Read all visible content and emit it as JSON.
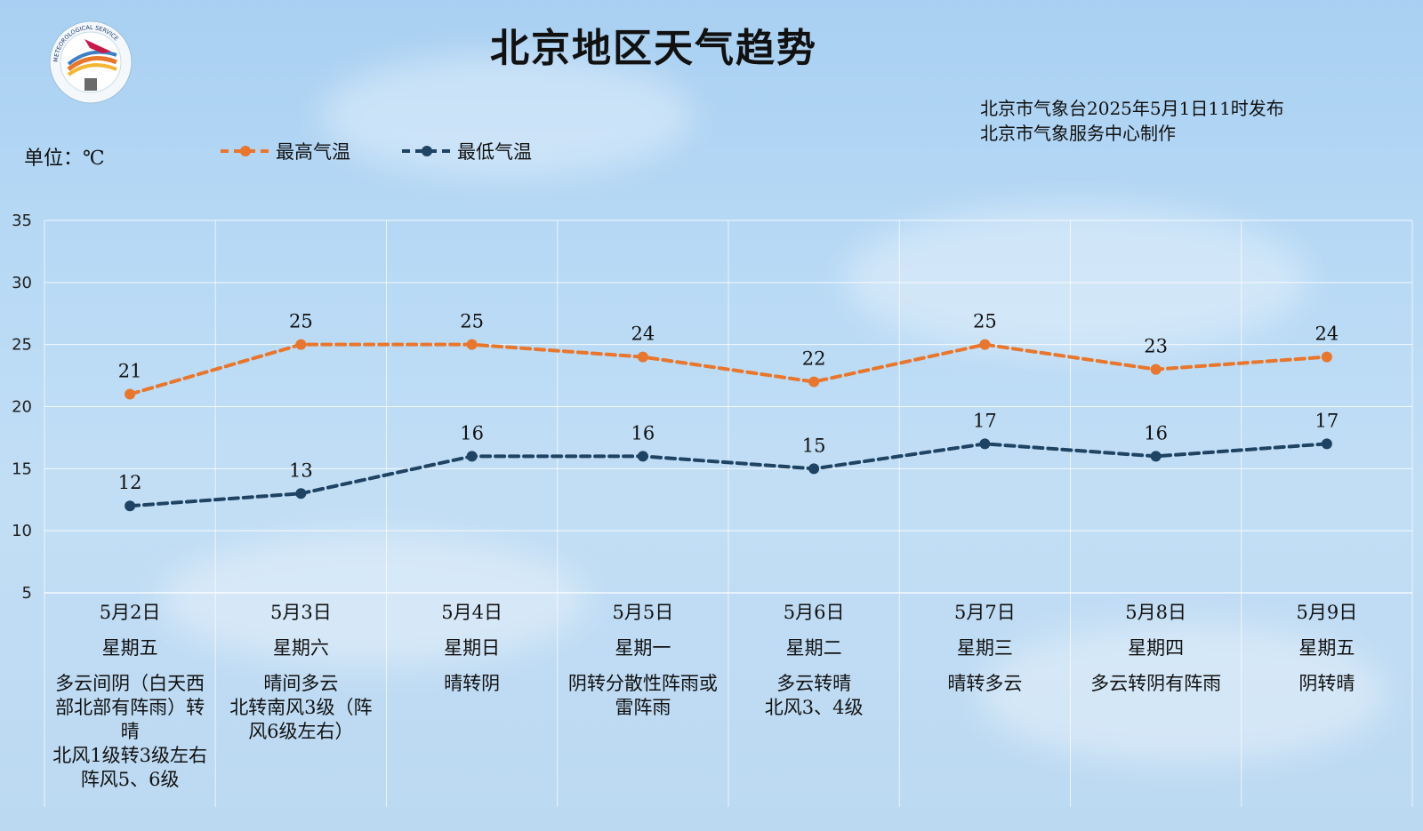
{
  "header": {
    "title": "北京地区天气趋势",
    "publisher": "北京市气象台2025年5月1日11时发布",
    "producer": "北京市气象服务中心制作",
    "logo_text": "METEOROLOGICAL SERVICE"
  },
  "unit_label": "单位：℃",
  "legend": {
    "high": "最高气温",
    "low": "最低气温"
  },
  "colors": {
    "high": "#e8762c",
    "low": "#1f4363",
    "grid": "#ffffff"
  },
  "chart_data": {
    "type": "line",
    "ylim": [
      5,
      35
    ],
    "yticks": [
      35,
      30,
      25,
      20,
      15,
      10,
      5
    ],
    "categories": [
      "5月2日",
      "5月3日",
      "5月4日",
      "5月5日",
      "5月6日",
      "5月7日",
      "5月8日",
      "5月9日"
    ],
    "series": [
      {
        "name": "最高气温",
        "values": [
          21,
          25,
          25,
          24,
          22,
          25,
          23,
          24
        ]
      },
      {
        "name": "最低气温",
        "values": [
          12,
          13,
          16,
          16,
          15,
          17,
          16,
          17
        ]
      }
    ],
    "grid": true,
    "legend_position": "top-left"
  },
  "days": [
    {
      "date": "5月2日",
      "weekday": "星期五",
      "desc": "多云间阴（白天西\n部北部有阵雨）转\n晴\n北风1级转3级左右\n阵风5、6级"
    },
    {
      "date": "5月3日",
      "weekday": "星期六",
      "desc": "晴间多云\n北转南风3级（阵\n风6级左右）"
    },
    {
      "date": "5月4日",
      "weekday": "星期日",
      "desc": "晴转阴"
    },
    {
      "date": "5月5日",
      "weekday": "星期一",
      "desc": "阴转分散性阵雨或\n雷阵雨"
    },
    {
      "date": "5月6日",
      "weekday": "星期二",
      "desc": "多云转晴\n北风3、4级"
    },
    {
      "date": "5月7日",
      "weekday": "星期三",
      "desc": "晴转多云"
    },
    {
      "date": "5月8日",
      "weekday": "星期四",
      "desc": "多云转阴有阵雨"
    },
    {
      "date": "5月9日",
      "weekday": "星期五",
      "desc": "阴转晴"
    }
  ]
}
